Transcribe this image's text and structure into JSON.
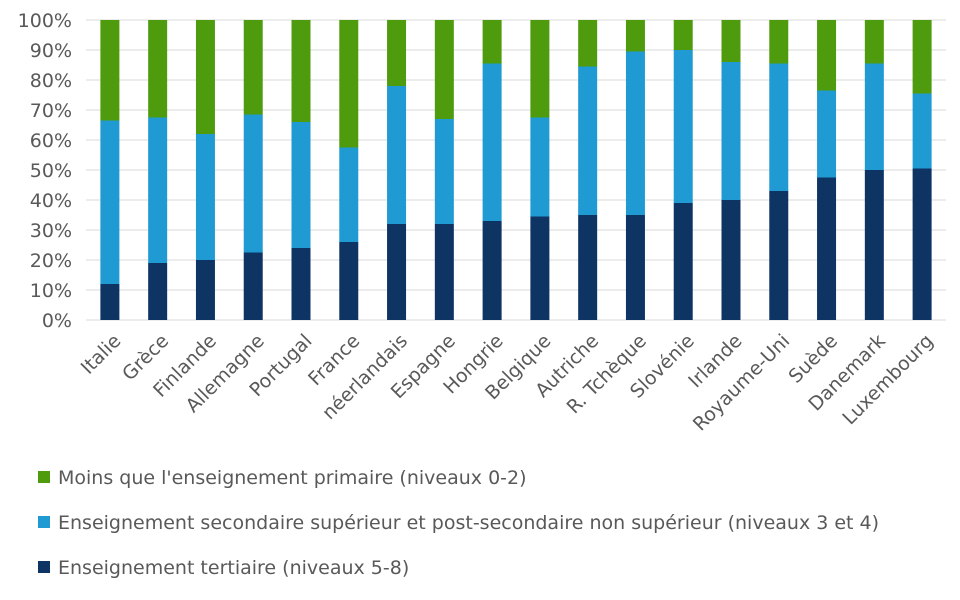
{
  "chart_data": {
    "type": "bar",
    "stacked": true,
    "title": "",
    "xlabel": "",
    "ylabel": "",
    "ylim": [
      0,
      100
    ],
    "yticks": [
      "0%",
      "10%",
      "20%",
      "30%",
      "40%",
      "50%",
      "60%",
      "70%",
      "80%",
      "90%",
      "100%"
    ],
    "grid": true,
    "legend_position": "bottom",
    "categories": [
      "Italie",
      "Grèce",
      "Finlande",
      "Allemagne",
      "Portugal",
      "France",
      "néerlandais",
      "Espagne",
      "Hongrie",
      "Belgique",
      "Autriche",
      "R. Tchèque",
      "Slovénie",
      "Irlande",
      "Royaume-Uni",
      "Suède",
      "Danemark",
      "Luxembourg"
    ],
    "series": [
      {
        "name": "Enseignement tertiaire (niveaux 5-8)",
        "color": "#0e3464",
        "values": [
          12,
          19,
          20,
          22.5,
          24,
          26,
          32,
          32,
          33,
          34.5,
          35,
          35,
          39,
          40,
          43,
          47.5,
          50,
          50.5
        ]
      },
      {
        "name": "Enseignement secondaire supérieur et post-secondaire non supérieur (niveaux 3 et 4)",
        "color": "#209ad3",
        "values": [
          54.5,
          48.5,
          42,
          46,
          42,
          31.5,
          46,
          35,
          52.5,
          33,
          49.5,
          54.5,
          51,
          46,
          42.5,
          29,
          35.5,
          25
        ]
      },
      {
        "name": "Moins que l'enseignement primaire (niveaux 0-2)",
        "color": "#4e9c0e",
        "values": [
          33.5,
          32.5,
          38,
          31.5,
          34,
          42.5,
          22,
          33,
          14.5,
          32.5,
          15.5,
          10.5,
          10,
          14,
          14.5,
          23.5,
          14.5,
          24.5
        ]
      }
    ],
    "legend_order": [
      2,
      1,
      0
    ]
  }
}
